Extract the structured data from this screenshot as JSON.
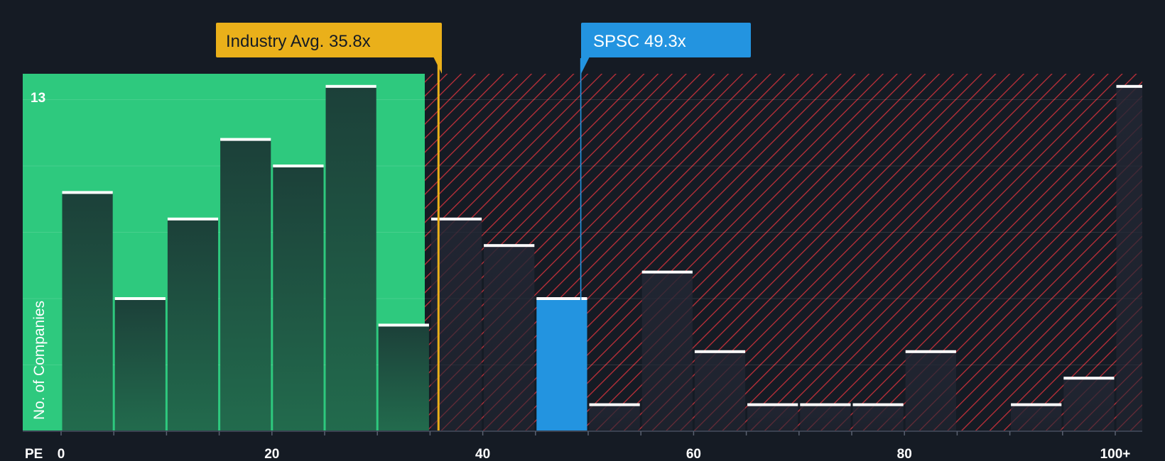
{
  "chart_data": {
    "type": "bar",
    "title": "",
    "xlabel": "PE",
    "ylabel": "No. of Companies",
    "x_ticks": [
      "0",
      "20",
      "40",
      "60",
      "80",
      "100+"
    ],
    "x_tick_values": [
      0,
      20,
      40,
      60,
      80,
      100
    ],
    "y_max_label": "13",
    "ylim": [
      0,
      13.5
    ],
    "bin_width": 5,
    "bins": [
      {
        "start": 0,
        "value": 9
      },
      {
        "start": 5,
        "value": 5
      },
      {
        "start": 10,
        "value": 8
      },
      {
        "start": 15,
        "value": 11
      },
      {
        "start": 20,
        "value": 10
      },
      {
        "start": 25,
        "value": 13
      },
      {
        "start": 30,
        "value": 4
      },
      {
        "start": 35,
        "value": 8
      },
      {
        "start": 40,
        "value": 7
      },
      {
        "start": 45,
        "value": 5
      },
      {
        "start": 50,
        "value": 1
      },
      {
        "start": 55,
        "value": 6
      },
      {
        "start": 60,
        "value": 3
      },
      {
        "start": 65,
        "value": 1
      },
      {
        "start": 70,
        "value": 1
      },
      {
        "start": 75,
        "value": 1
      },
      {
        "start": 80,
        "value": 3
      },
      {
        "start": 85,
        "value": 0
      },
      {
        "start": 90,
        "value": 1
      },
      {
        "start": 95,
        "value": 2
      },
      {
        "start": 100,
        "value": 13
      }
    ],
    "highlight_bin_start": 45,
    "fair_range_max": 34.5,
    "industry_avg": {
      "label": "Industry Avg. 35.8x",
      "value": 35.8
    },
    "company": {
      "label": "SPSC 49.3x",
      "value": 49.3
    }
  },
  "colors": {
    "background": "#151b24",
    "fair_zone": "#2ec97e",
    "bar_fill": "#1e4a3e",
    "bar_cap": "#ffffff",
    "hatch_line": "#c0303a",
    "company_bar": "#2394e0",
    "industry_callout": "#eab01a",
    "company_callout": "#2394e0"
  }
}
